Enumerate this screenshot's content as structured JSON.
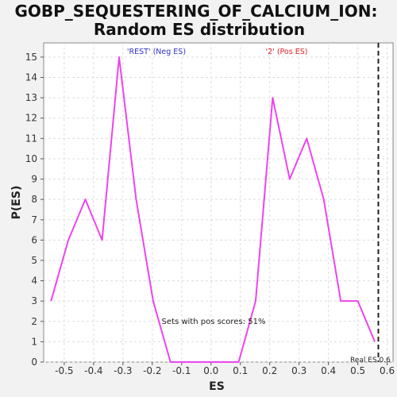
{
  "chart_data": {
    "type": "line",
    "title": "GOBP_SEQUESTERING_OF_CALCIUM_ION:",
    "subtitle": "Random ES distribution",
    "xlabel": "ES",
    "ylabel": "P(ES)",
    "xlim": [
      -0.57,
      0.62
    ],
    "ylim": [
      0,
      15.7
    ],
    "grid": true,
    "x_ticks": [
      "-0.5",
      "-0.4",
      "-0.3",
      "-0.2",
      "-0.1",
      "0.0",
      "0.1",
      "0.2",
      "0.3",
      "0.4",
      "0.5",
      "0.6"
    ],
    "y_ticks": [
      "0",
      "1",
      "2",
      "3",
      "4",
      "5",
      "6",
      "7",
      "8",
      "9",
      "10",
      "11",
      "12",
      "13",
      "14",
      "15"
    ],
    "series": [
      {
        "color": "#ee44ee",
        "x": [
          -0.545,
          -0.486,
          -0.428,
          -0.371,
          -0.313,
          -0.255,
          -0.197,
          -0.138,
          -0.081,
          -0.022,
          0.036,
          0.094,
          0.152,
          0.21,
          0.268,
          0.326,
          0.384,
          0.442,
          0.5,
          0.558
        ],
        "y": [
          3,
          6,
          8,
          6,
          15,
          8,
          3,
          0,
          0,
          0,
          0,
          0,
          3,
          13,
          9,
          11,
          8,
          3,
          3,
          1
        ]
      }
    ],
    "annotations": {
      "neg_label": "'REST' (Neg ES)",
      "pos_label": "'2' (Pos ES)",
      "pos_scores": "Sets with pos scores: 51%",
      "real_es": "Real ES 0.6",
      "neg_color": "#3333cc",
      "pos_color": "#dd2222"
    },
    "real_es_value": 0.57
  }
}
